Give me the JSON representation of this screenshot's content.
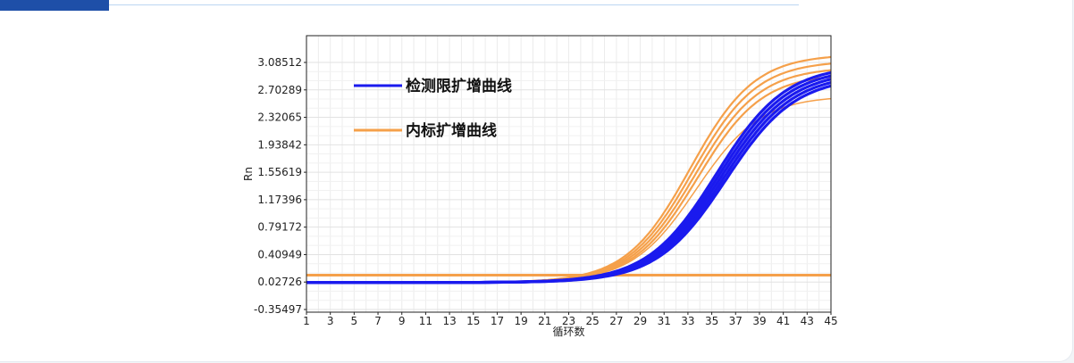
{
  "chart_data": {
    "type": "line",
    "xlabel": "循环数",
    "ylabel": "Rn",
    "xlim": [
      1,
      45
    ],
    "ylim": [
      -0.35497,
      3.2
    ],
    "x_ticks": [
      "1",
      "3",
      "5",
      "7",
      "9",
      "11",
      "13",
      "15",
      "17",
      "19",
      "21",
      "23",
      "25",
      "27",
      "29",
      "31",
      "33",
      "35",
      "37",
      "39",
      "41",
      "43",
      "45"
    ],
    "y_ticks": [
      "3.08512",
      "2.70289",
      "2.32065",
      "1.93842",
      "1.55619",
      "1.17396",
      "0.79172",
      "0.40949",
      "0.02726",
      "-0.35497"
    ],
    "y_tick_values": [
      3.08512,
      2.70289,
      2.32065,
      1.93842,
      1.55619,
      1.17396,
      0.79172,
      0.40949,
      0.02726,
      -0.35497
    ],
    "grid": true,
    "legend_position": "top-left",
    "series": [
      {
        "name": "检测限扩增曲线",
        "color": "#1a1aee",
        "baseline": 0.02,
        "plateau": 3.05,
        "midpoint": 35.8,
        "slope": 2.9,
        "replicates": [
          -0.4,
          -0.2,
          0,
          0.2,
          0.4
        ]
      },
      {
        "name": "内标扩增曲线",
        "color": "#f5a04a",
        "baseline": 0.02,
        "plateau": 3.2,
        "midpoint": 33.5,
        "slope": 2.7,
        "replicates": [
          -0.3,
          -0.1,
          0.1,
          0.3
        ],
        "flat_line_value": 0.13
      }
    ]
  }
}
